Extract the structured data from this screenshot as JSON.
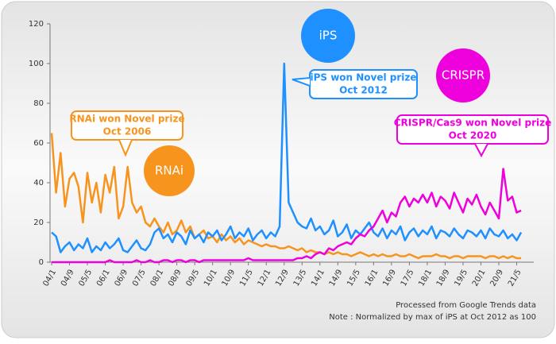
{
  "chart_data": {
    "type": "line",
    "categories": [
      "04/1",
      null,
      null,
      null,
      "04/9",
      null,
      null,
      null,
      "05/5",
      null,
      null,
      null,
      "06/1",
      null,
      null,
      null,
      "06/9",
      null,
      null,
      null,
      "07/5",
      null,
      null,
      null,
      "08/1",
      null,
      null,
      null,
      "08/9",
      null,
      null,
      null,
      "09/5",
      null,
      null,
      null,
      "10/1",
      null,
      null,
      null,
      "10/9",
      null,
      null,
      null,
      "11/5",
      null,
      null,
      null,
      "12/1",
      null,
      null,
      null,
      "12/9",
      null,
      null,
      null,
      "13/5",
      null,
      null,
      null,
      "14/1",
      null,
      null,
      null,
      "14/9",
      null,
      null,
      null,
      "15/5",
      null,
      null,
      null,
      "16/1",
      null,
      null,
      null,
      "16/9",
      null,
      null,
      null,
      "17/5",
      null,
      null,
      null,
      "18/1",
      null,
      null,
      null,
      "18/9",
      null,
      null,
      null,
      "19/5",
      null,
      null,
      null,
      "20/1",
      null,
      null,
      null,
      "20/9",
      null,
      null,
      null,
      "21/5",
      null
    ],
    "series": [
      {
        "name": "RNAi",
        "color": "#f7941d",
        "values": [
          65,
          35,
          55,
          28,
          42,
          45,
          38,
          20,
          45,
          30,
          40,
          25,
          44,
          35,
          48,
          22,
          28,
          48,
          30,
          25,
          28,
          20,
          18,
          22,
          18,
          15,
          20,
          14,
          16,
          21,
          15,
          18,
          12,
          14,
          16,
          12,
          13,
          10,
          14,
          11,
          13,
          10,
          12,
          9,
          11,
          10,
          9,
          8,
          9,
          8,
          8,
          7,
          7,
          8,
          7,
          6,
          7,
          5,
          6,
          5,
          5,
          4,
          5,
          4,
          5,
          4,
          4,
          3,
          4,
          5,
          4,
          3,
          4,
          3,
          4,
          3,
          3,
          4,
          3,
          3,
          4,
          3,
          2,
          3,
          3,
          3,
          4,
          3,
          3,
          2,
          3,
          3,
          2,
          3,
          3,
          3,
          3,
          2,
          3,
          3,
          2,
          3,
          2,
          3,
          2,
          2
        ]
      },
      {
        "name": "iPS",
        "color": "#1e90ff",
        "values": [
          15,
          13,
          5,
          8,
          10,
          6,
          9,
          7,
          12,
          5,
          8,
          6,
          10,
          7,
          9,
          12,
          6,
          5,
          8,
          11,
          7,
          6,
          9,
          15,
          17,
          12,
          14,
          10,
          15,
          13,
          9,
          16,
          12,
          14,
          10,
          15,
          13,
          16,
          11,
          14,
          18,
          12,
          15,
          13,
          17,
          11,
          14,
          16,
          12,
          15,
          13,
          18,
          100,
          30,
          25,
          20,
          18,
          17,
          22,
          16,
          18,
          14,
          16,
          21,
          13,
          15,
          19,
          12,
          16,
          14,
          17,
          20,
          15,
          13,
          17,
          12,
          16,
          14,
          18,
          11,
          15,
          17,
          13,
          16,
          14,
          18,
          12,
          16,
          15,
          13,
          17,
          14,
          12,
          16,
          15,
          13,
          16,
          12,
          17,
          14,
          13,
          16,
          12,
          14,
          11,
          15
        ]
      },
      {
        "name": "CRISPR",
        "color": "#ee00dd",
        "values": [
          0,
          0,
          0,
          0,
          0,
          0,
          0,
          0,
          0,
          0,
          0,
          0,
          0,
          1,
          0,
          0,
          0,
          0,
          0,
          1,
          0,
          0,
          1,
          0,
          0,
          1,
          1,
          0,
          1,
          1,
          0,
          1,
          1,
          0,
          1,
          1,
          1,
          1,
          1,
          1,
          1,
          1,
          1,
          1,
          2,
          1,
          1,
          1,
          1,
          1,
          1,
          1,
          1,
          1,
          1,
          2,
          2,
          3,
          2,
          4,
          5,
          4,
          7,
          6,
          8,
          9,
          10,
          9,
          12,
          14,
          13,
          16,
          18,
          22,
          26,
          20,
          25,
          23,
          30,
          33,
          28,
          32,
          30,
          34,
          30,
          35,
          28,
          33,
          31,
          27,
          35,
          30,
          25,
          32,
          29,
          34,
          28,
          24,
          30,
          26,
          22,
          47,
          31,
          33,
          25,
          26
        ]
      }
    ],
    "ylim": [
      0,
      120
    ],
    "yticks": [
      0,
      20,
      40,
      60,
      80,
      100,
      120
    ],
    "annotations": [
      {
        "lines": [
          "RNAi won Novel prize",
          "Oct 2006"
        ],
        "color": "#f7941d"
      },
      {
        "lines": [
          "iPS won Novel prize",
          "Oct 2012"
        ],
        "color": "#1e90ff"
      },
      {
        "lines": [
          "CRISPR/Cas9 won Novel prize",
          "Oct 2020"
        ],
        "color": "#ee00dd"
      }
    ],
    "notes": [
      "Processed from Google Trends data",
      "Note : Normalized by max of iPS at Oct 2012 as 100"
    ]
  }
}
